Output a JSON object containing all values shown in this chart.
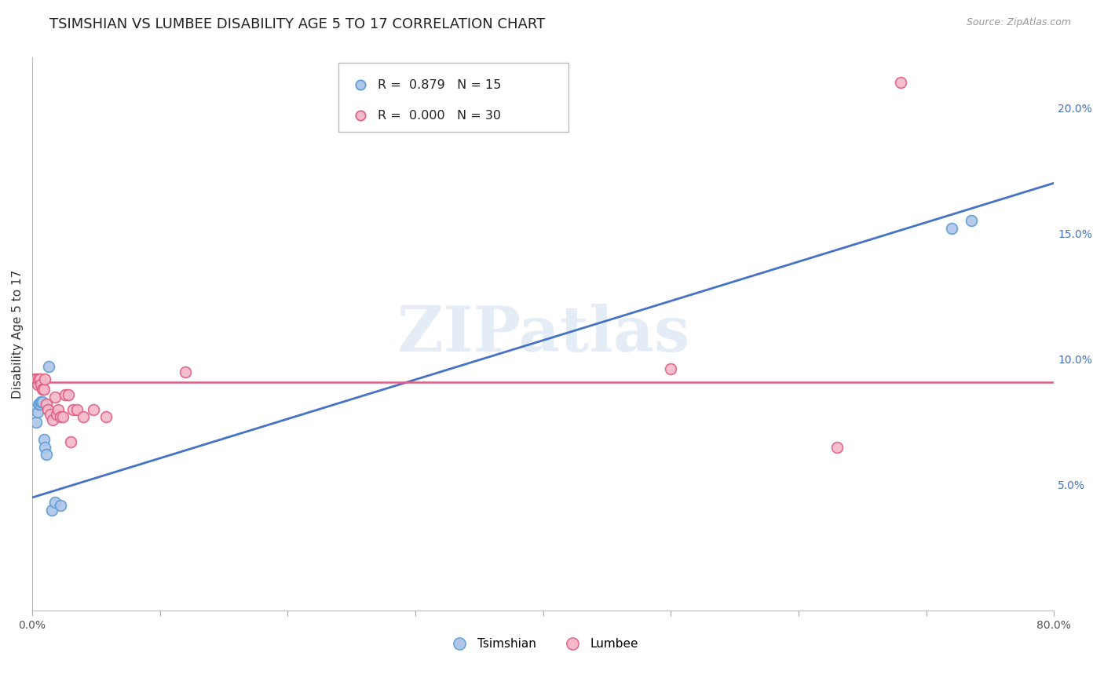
{
  "title": "TSIMSHIAN VS LUMBEE DISABILITY AGE 5 TO 17 CORRELATION CHART",
  "source": "Source: ZipAtlas.com",
  "ylabel": "Disability Age 5 to 17",
  "xlim": [
    0.0,
    0.8
  ],
  "ylim": [
    0.0,
    0.22
  ],
  "xticks": [
    0.0,
    0.1,
    0.2,
    0.3,
    0.4,
    0.5,
    0.6,
    0.7,
    0.8
  ],
  "yticks_right": [
    0.05,
    0.1,
    0.15,
    0.2
  ],
  "yticklabels_right": [
    "5.0%",
    "10.0%",
    "15.0%",
    "20.0%"
  ],
  "grid_color": "#cccccc",
  "background_color": "#ffffff",
  "watermark": "ZIPatlas",
  "tsimshian_color": "#aec6e8",
  "tsimshian_edge_color": "#5b9bd5",
  "lumbee_color": "#f4b8c8",
  "lumbee_edge_color": "#e05c80",
  "blue_line_color": "#4472c4",
  "pink_line_color": "#e05c80",
  "legend_R_tsimshian": "0.879",
  "legend_N_tsimshian": "15",
  "legend_R_lumbee": "0.000",
  "legend_N_lumbee": "30",
  "tsimshian_x": [
    0.003,
    0.004,
    0.005,
    0.006,
    0.007,
    0.008,
    0.009,
    0.01,
    0.011,
    0.013,
    0.015,
    0.018,
    0.022,
    0.72,
    0.735
  ],
  "tsimshian_y": [
    0.075,
    0.079,
    0.082,
    0.082,
    0.083,
    0.083,
    0.068,
    0.065,
    0.062,
    0.097,
    0.04,
    0.043,
    0.042,
    0.152,
    0.155
  ],
  "lumbee_x": [
    0.002,
    0.003,
    0.004,
    0.005,
    0.006,
    0.007,
    0.008,
    0.009,
    0.01,
    0.011,
    0.012,
    0.014,
    0.016,
    0.018,
    0.019,
    0.02,
    0.022,
    0.024,
    0.026,
    0.028,
    0.03,
    0.032,
    0.035,
    0.04,
    0.048,
    0.058,
    0.12,
    0.5,
    0.63,
    0.68
  ],
  "lumbee_y": [
    0.092,
    0.092,
    0.09,
    0.092,
    0.092,
    0.09,
    0.088,
    0.088,
    0.092,
    0.082,
    0.08,
    0.078,
    0.076,
    0.085,
    0.078,
    0.08,
    0.077,
    0.077,
    0.086,
    0.086,
    0.067,
    0.08,
    0.08,
    0.077,
    0.08,
    0.077,
    0.095,
    0.096,
    0.065,
    0.21
  ],
  "tsimshian_line_x": [
    0.0,
    0.8
  ],
  "tsimshian_line_y_start": 0.045,
  "tsimshian_line_y_end": 0.17,
  "lumbee_line_y": 0.091,
  "marker_size": 100,
  "title_fontsize": 13,
  "axis_label_fontsize": 11,
  "tick_fontsize": 10,
  "legend_fontsize": 12
}
